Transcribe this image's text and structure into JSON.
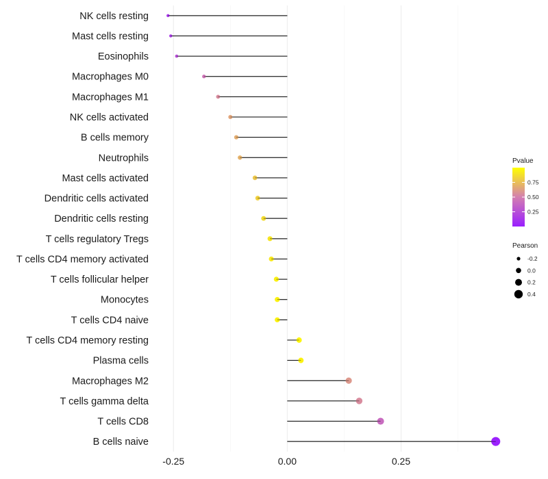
{
  "chart_data": {
    "type": "lollipop",
    "categories": [
      "NK cells resting",
      "Mast cells resting",
      "Eosinophils",
      "Macrophages M0",
      "Macrophages M1",
      "NK cells activated",
      "B cells memory",
      "Neutrophils",
      "Mast cells activated",
      "Dendritic cells activated",
      "Dendritic cells resting",
      "T cells regulatory  Tregs ",
      "T cells CD4 memory activated",
      "T cells follicular helper",
      "Monocytes",
      "T cells CD4 naive",
      "T cells CD4 memory resting",
      "Plasma cells",
      "Macrophages M2",
      "T cells gamma delta",
      "T cells CD8",
      "B cells naive"
    ],
    "pearson": [
      -0.262,
      -0.256,
      -0.243,
      -0.183,
      -0.152,
      -0.125,
      -0.112,
      -0.104,
      -0.071,
      -0.065,
      -0.052,
      -0.038,
      -0.035,
      -0.024,
      -0.022,
      -0.022,
      0.026,
      0.03,
      0.135,
      0.158,
      0.205,
      0.458
    ],
    "pvalue": [
      0.12,
      0.15,
      0.25,
      0.45,
      0.55,
      0.65,
      0.68,
      0.7,
      0.78,
      0.82,
      0.86,
      0.9,
      0.91,
      0.94,
      0.95,
      0.95,
      0.96,
      0.95,
      0.6,
      0.55,
      0.4,
      0.01
    ],
    "x_ticks": [
      -0.25,
      0.0,
      0.25
    ],
    "x_tick_labels": [
      "-0.25",
      "0.00",
      "0.25"
    ],
    "xlim": [
      -0.285,
      0.475
    ],
    "color_scale": {
      "low_color": "#9a1fff",
      "mid_color": "#d47fb0",
      "high_color": "#ffff00",
      "range": [
        0.0,
        1.0
      ]
    },
    "legend": {
      "pvalue_title": "Pvalue",
      "pvalue_ticks": [
        0.75,
        0.5,
        0.25
      ],
      "pvalue_tick_labels": [
        "0.75",
        "0.50",
        "0.25"
      ],
      "pearson_title": "Pearson",
      "pearson_values": [
        -0.2,
        0.0,
        0.2,
        0.4
      ],
      "pearson_labels": [
        "-0.2",
        "0.0",
        "0.2",
        "0.4"
      ]
    },
    "title": "",
    "xlabel": "",
    "ylabel": ""
  }
}
